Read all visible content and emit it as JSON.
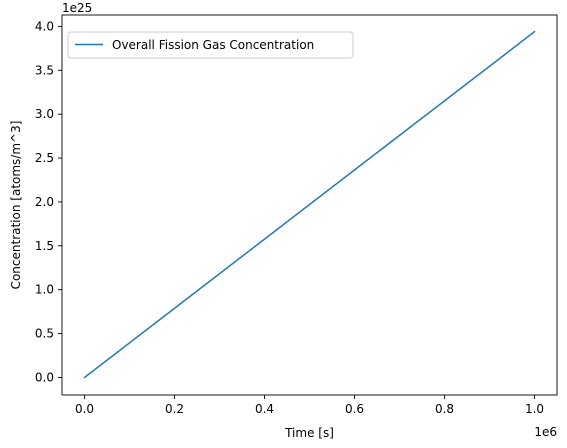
{
  "chart_data": {
    "type": "line",
    "title": "",
    "xlabel": "Time [s]",
    "ylabel": "Concentration [atoms/m^3]",
    "x_offset_label": "1e6",
    "y_offset_label": "1e25",
    "x_ticks": [
      0.0,
      0.2,
      0.4,
      0.6,
      0.8,
      1.0
    ],
    "x_tick_labels": [
      "0.0",
      "0.2",
      "0.4",
      "0.6",
      "0.8",
      "1.0"
    ],
    "y_ticks": [
      0.0,
      0.5,
      1.0,
      1.5,
      2.0,
      2.5,
      3.0,
      3.5,
      4.0
    ],
    "y_tick_labels": [
      "0.0",
      "0.5",
      "1.0",
      "1.5",
      "2.0",
      "2.5",
      "3.0",
      "3.5",
      "4.0"
    ],
    "xlim": [
      -0.05,
      1.05
    ],
    "ylim": [
      -0.2,
      4.13
    ],
    "grid": false,
    "legend_position": "top-left",
    "series": [
      {
        "name": "Overall Fission Gas Concentration",
        "color": "#1f77b4",
        "x": [
          0.0,
          1.0
        ],
        "y": [
          0.0,
          3.94
        ]
      }
    ]
  }
}
